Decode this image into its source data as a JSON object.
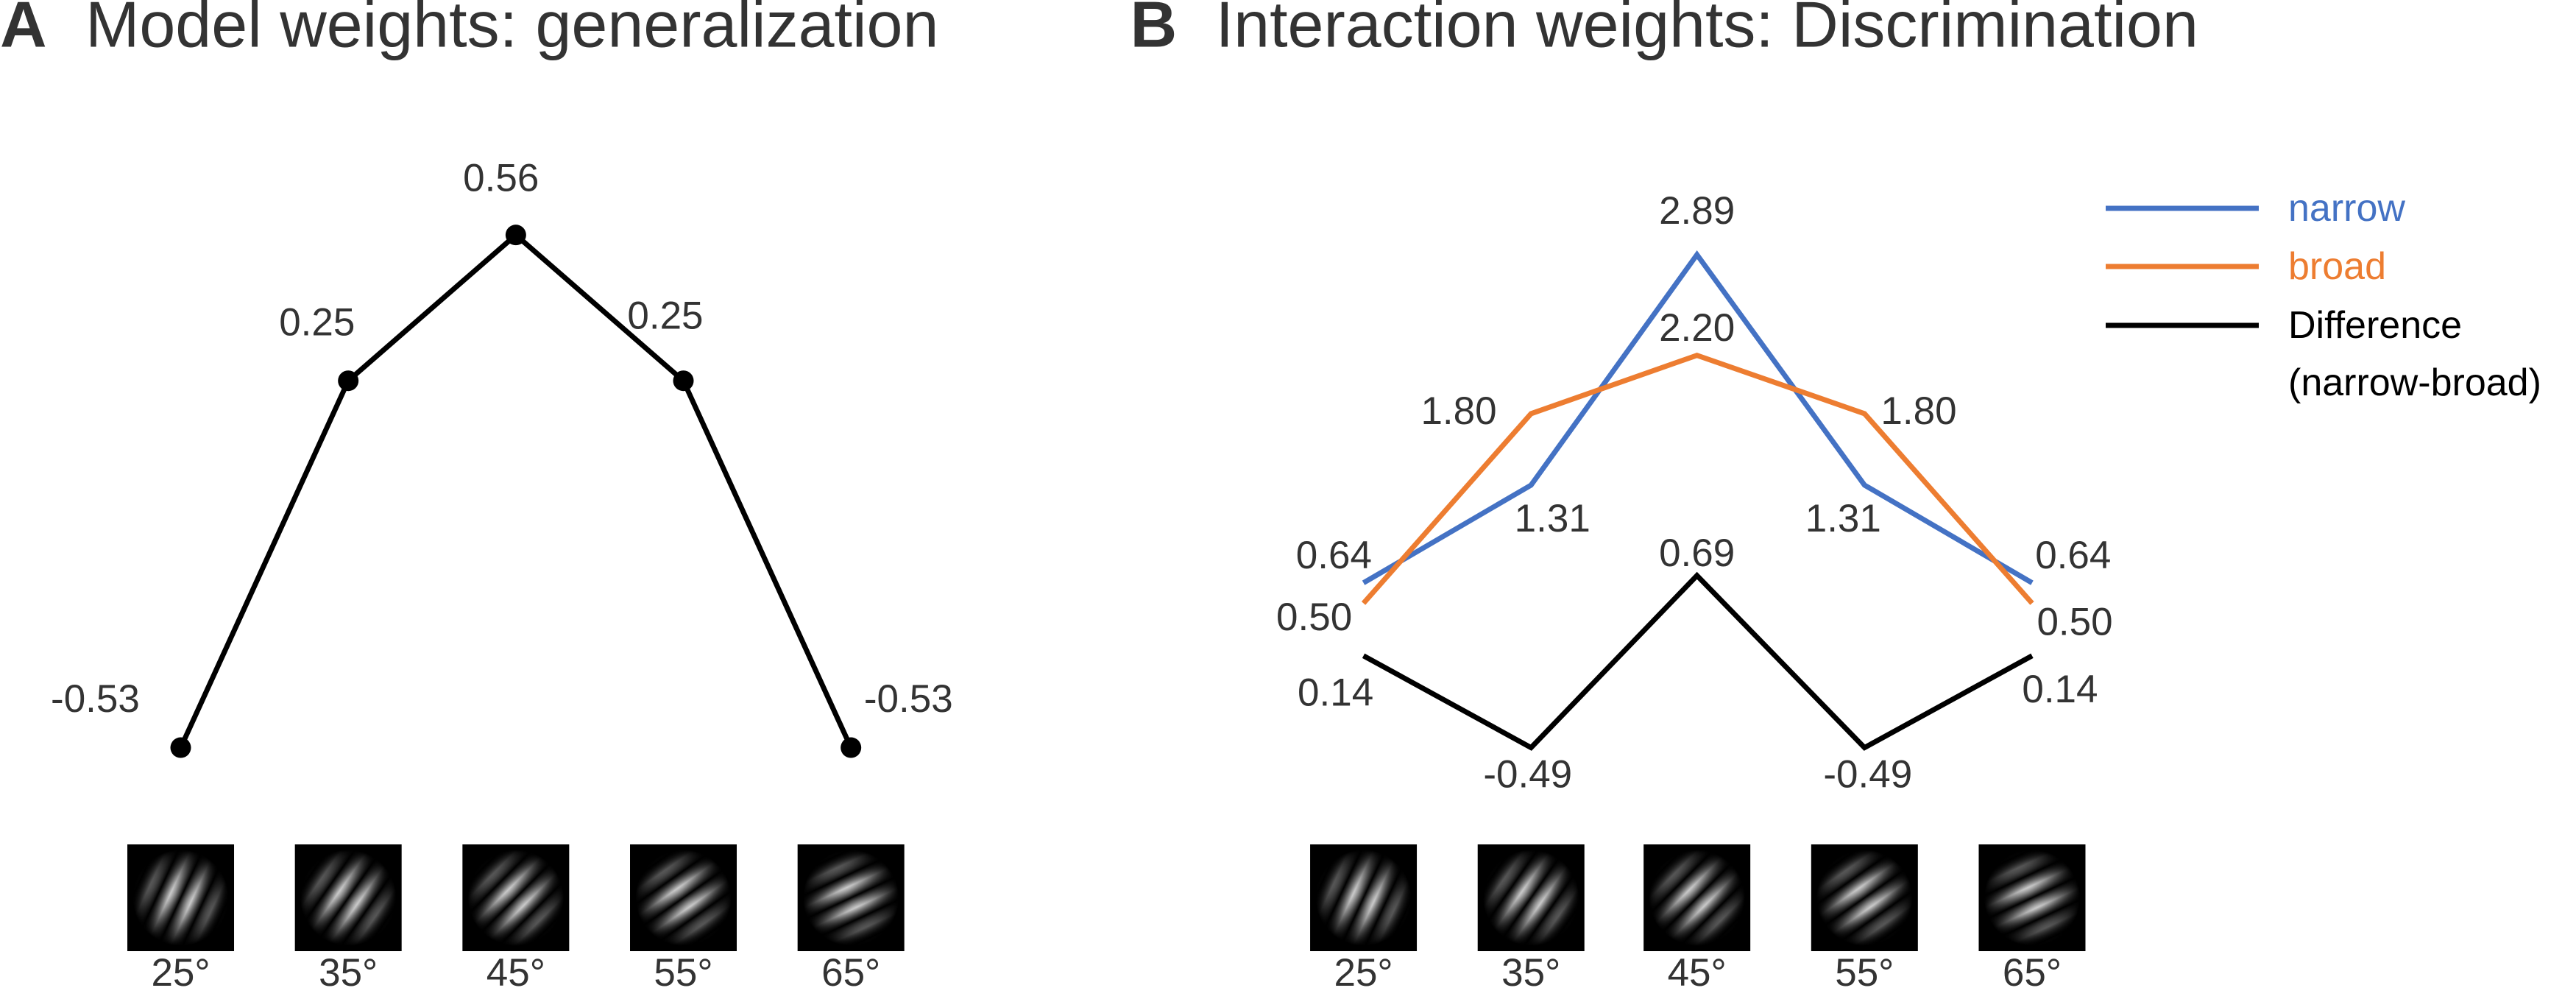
{
  "chart_data": [
    {
      "type": "line",
      "panel": "A",
      "title": "Model weights: generalization",
      "categories": [
        "25°",
        "35°",
        "45°",
        "55°",
        "65°"
      ],
      "series": [
        {
          "color": "#000000",
          "markers": true,
          "values": [
            -0.53,
            0.25,
            0.56,
            0.25,
            -0.53
          ]
        }
      ]
    },
    {
      "type": "line",
      "panel": "B",
      "title": "Interaction weights: Discrimination",
      "categories": [
        "25°",
        "35°",
        "45°",
        "55°",
        "65°"
      ],
      "legend": "upper right",
      "series": [
        {
          "name": "narrow",
          "color": "#4472c4",
          "values": [
            0.64,
            1.31,
            2.89,
            1.31,
            0.64
          ]
        },
        {
          "name": "broad",
          "color": "#ed7d31",
          "values": [
            0.5,
            1.8,
            2.2,
            1.8,
            0.5
          ],
          "value_labels": [
            "0.50",
            "1.80",
            "2.20",
            "1.80",
            "0.50"
          ]
        },
        {
          "name": "Difference\n(narrow-broad)",
          "color": "#000000",
          "values": [
            0.14,
            -0.49,
            0.69,
            -0.49,
            0.14
          ]
        }
      ]
    }
  ]
}
